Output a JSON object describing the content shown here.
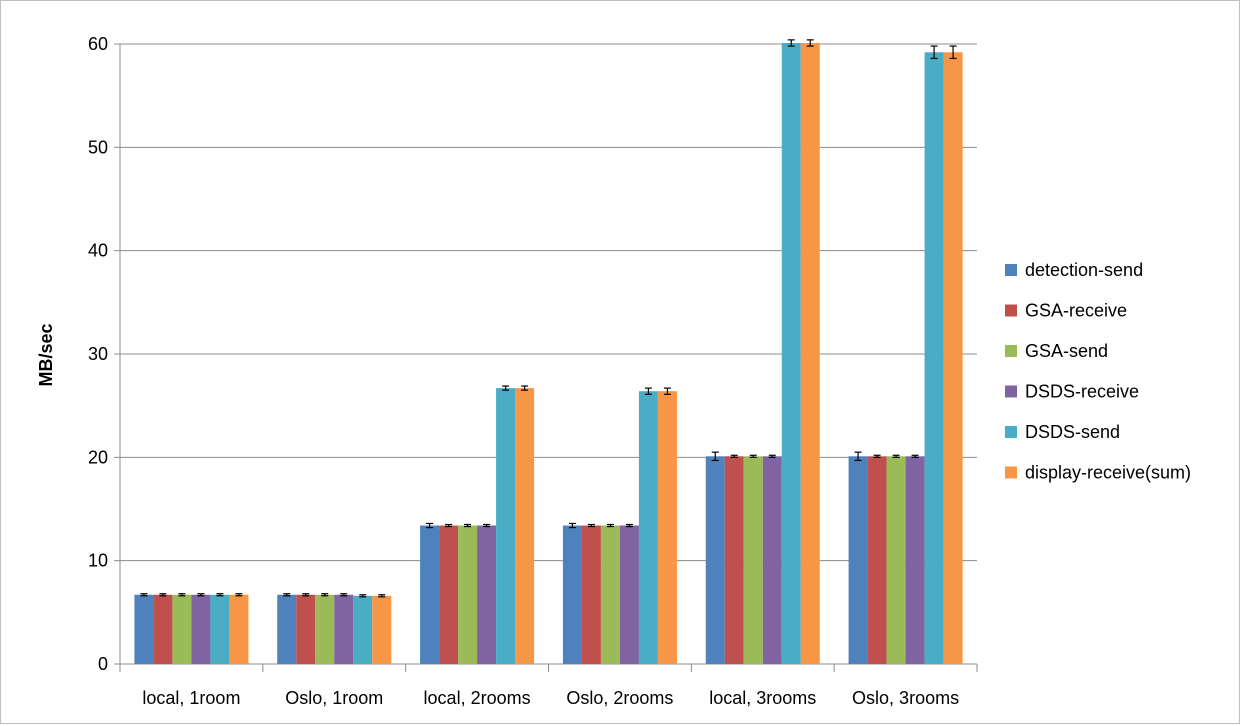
{
  "chart_data": {
    "type": "bar",
    "ylabel": "MB/sec",
    "xlabel": "",
    "title": "",
    "ylim": [
      0,
      60
    ],
    "yticks": [
      0,
      10,
      20,
      30,
      40,
      50,
      60
    ],
    "grid": true,
    "legend_position": "right",
    "categories": [
      "local, 1room",
      "Oslo, 1room",
      "local, 2rooms",
      "Oslo, 2rooms",
      "local, 3rooms",
      "Oslo, 3rooms"
    ],
    "series": [
      {
        "name": "detection-send",
        "color": "#4f81bd",
        "values": [
          6.7,
          6.7,
          13.4,
          13.4,
          20.1,
          20.1
        ],
        "errors": [
          0.1,
          0.1,
          0.2,
          0.2,
          0.4,
          0.4
        ]
      },
      {
        "name": "GSA-receive",
        "color": "#c0504d",
        "values": [
          6.7,
          6.7,
          13.4,
          13.4,
          20.1,
          20.1
        ],
        "errors": [
          0.1,
          0.1,
          0.1,
          0.1,
          0.1,
          0.1
        ]
      },
      {
        "name": "GSA-send",
        "color": "#9bbb59",
        "values": [
          6.7,
          6.7,
          13.4,
          13.4,
          20.1,
          20.1
        ],
        "errors": [
          0.1,
          0.1,
          0.1,
          0.1,
          0.1,
          0.1
        ]
      },
      {
        "name": "DSDS-receive",
        "color": "#8064a2",
        "values": [
          6.7,
          6.7,
          13.4,
          13.4,
          20.1,
          20.1
        ],
        "errors": [
          0.1,
          0.1,
          0.1,
          0.1,
          0.1,
          0.1
        ]
      },
      {
        "name": "DSDS-send",
        "color": "#4bacc6",
        "values": [
          6.7,
          6.6,
          26.7,
          26.4,
          60.1,
          59.2
        ],
        "errors": [
          0.1,
          0.1,
          0.2,
          0.3,
          0.3,
          0.6
        ]
      },
      {
        "name": "display-receive(sum)",
        "color": "#f79646",
        "values": [
          6.7,
          6.6,
          26.7,
          26.4,
          60.1,
          59.2
        ],
        "errors": [
          0.1,
          0.1,
          0.2,
          0.3,
          0.3,
          0.6
        ]
      }
    ]
  }
}
